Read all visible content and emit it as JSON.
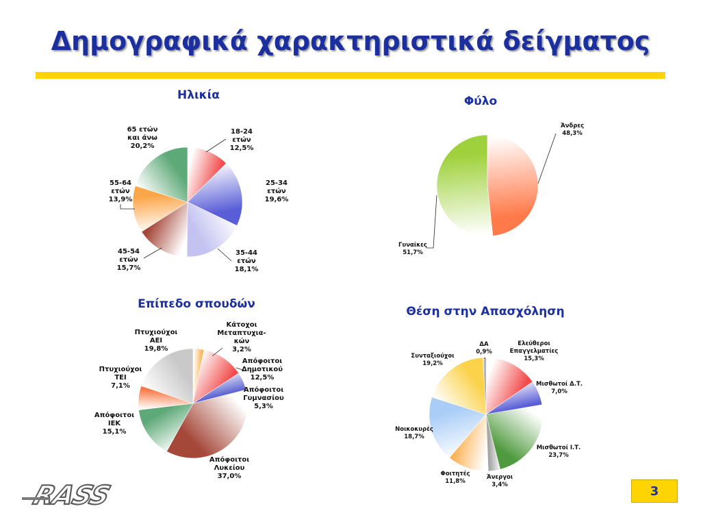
{
  "slide": {
    "title": "Δημογραφικά χαρακτηριστικά δείγματος",
    "page_number": "3",
    "logo_text": "RASS"
  },
  "chart_data": [
    {
      "id": "age",
      "type": "pie",
      "title": "Ηλικία",
      "slices": [
        {
          "label": [
            "18-24",
            "ετών",
            "12,5%"
          ],
          "value": 12.5,
          "color": "#f24a4a"
        },
        {
          "label": [
            "25-34",
            "ετών",
            "19,6%"
          ],
          "value": 19.6,
          "color": "#5a5ed6"
        },
        {
          "label": [
            "35-44",
            "ετών",
            "18,1%"
          ],
          "value": 18.1,
          "color": "#c3c2f0"
        },
        {
          "label": [
            "45-54",
            "ετών",
            "15,7%"
          ],
          "value": 15.7,
          "color": "#a5483a"
        },
        {
          "label": [
            "55-64",
            "ετών",
            "13,9%"
          ],
          "value": 13.9,
          "color": "#fca64a"
        },
        {
          "label": [
            "65 ετών",
            "και άνω",
            "20,2%"
          ],
          "value": 20.2,
          "color": "#5ea978"
        }
      ]
    },
    {
      "id": "gender",
      "type": "pie",
      "title": "Φύλο",
      "slices": [
        {
          "label": [
            "Άνδρες",
            "48,3%"
          ],
          "value": 48.3,
          "color": "#ff7a4a"
        },
        {
          "label": [
            "Γυναίκες",
            "51,7%"
          ],
          "value": 51.7,
          "color": "#9fd13c"
        }
      ]
    },
    {
      "id": "education",
      "type": "pie",
      "title": "Επίπεδο σπουδών",
      "slices": [
        {
          "label": [
            "Κάτοχοι",
            "Μεταπτυχια-",
            "κών",
            "3,2%"
          ],
          "value": 3.2,
          "color": "#fcb256"
        },
        {
          "label": [
            "Απόφοιτοι",
            "Δημοτικού",
            "12,5%"
          ],
          "value": 12.5,
          "color": "#f24a4a"
        },
        {
          "label": [
            "Απόφοιτοι",
            "Γυμνασίου",
            "5,3%"
          ],
          "value": 5.3,
          "color": "#4c54cc"
        },
        {
          "label": [
            "Απόφοιτοι",
            "Λυκείου",
            "37,0%"
          ],
          "value": 37.0,
          "color": "#a5483a"
        },
        {
          "label": [
            "Απόφοιτοι",
            "ΙΕΚ",
            "15,1%"
          ],
          "value": 15.1,
          "color": "#5ea978"
        },
        {
          "label": [
            "Πτυχιούχοι",
            "ΤΕΙ",
            "7,1%"
          ],
          "value": 7.1,
          "color": "#f87a48"
        },
        {
          "label": [
            "Πτυχιούχοι",
            "ΑΕΙ",
            "19,8%"
          ],
          "value": 19.8,
          "color": "#c9c9c9"
        }
      ]
    },
    {
      "id": "employment",
      "type": "pie",
      "title": "Θέση στην Απασχόληση",
      "slices": [
        {
          "label": [
            "Ελεύθεροι",
            "Επαγγελματίες",
            "15,3%"
          ],
          "value": 15.3,
          "color": "#f24a4a"
        },
        {
          "label": [
            "Μισθωτοί Δ.Τ.",
            "7,0%"
          ],
          "value": 7.0,
          "color": "#5a5ed6"
        },
        {
          "label": [
            "Μισθωτοί Ι.Τ.",
            "23,7%"
          ],
          "value": 23.7,
          "color": "#4f9a3e"
        },
        {
          "label": [
            "Άνεργοι",
            "3,4%"
          ],
          "value": 3.4,
          "color": "#a6a6a6"
        },
        {
          "label": [
            "Φοιτητές",
            "11,8%"
          ],
          "value": 11.8,
          "color": "#fcb256"
        },
        {
          "label": [
            "Νοικοκυρές",
            "18,7%"
          ],
          "value": 18.7,
          "color": "#a9cdf7"
        },
        {
          "label": [
            "Συνταξιούχοι",
            "19,2%"
          ],
          "value": 19.2,
          "color": "#fbd24a"
        },
        {
          "label": [
            "ΔΑ",
            "0,9%"
          ],
          "value": 0.9,
          "color": "#9a9a9a"
        }
      ]
    }
  ]
}
